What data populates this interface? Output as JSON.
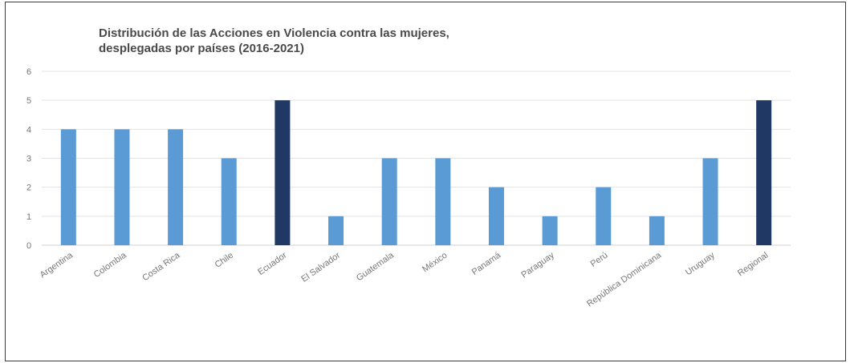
{
  "chart_data": {
    "type": "bar",
    "title_lines": [
      "Distribución de las Acciones en Violencia contra las mujeres,",
      "desplegadas por países (2016-2021)"
    ],
    "categories": [
      "Argentina",
      "Colombia",
      "Costa Rica",
      "Chile",
      "Ecuador",
      "El Salvador",
      "Guatemala",
      "México",
      "Panamá",
      "Paraguay",
      "Perú",
      "República Dominicana",
      "Uruguay",
      "Regional"
    ],
    "values": [
      4,
      4,
      4,
      3,
      5,
      1,
      3,
      3,
      2,
      1,
      2,
      1,
      3,
      5
    ],
    "highlight_categories": [
      "Ecuador",
      "Regional"
    ],
    "ylim": [
      0,
      6
    ],
    "yticks": [
      0,
      1,
      2,
      3,
      4,
      5,
      6
    ],
    "grid": true,
    "legend": "none",
    "colors": {
      "bar": "#5b9bd5",
      "highlight": "#1f3864",
      "grid": "#e3e3e3",
      "axis": "#d0d0d0"
    }
  }
}
